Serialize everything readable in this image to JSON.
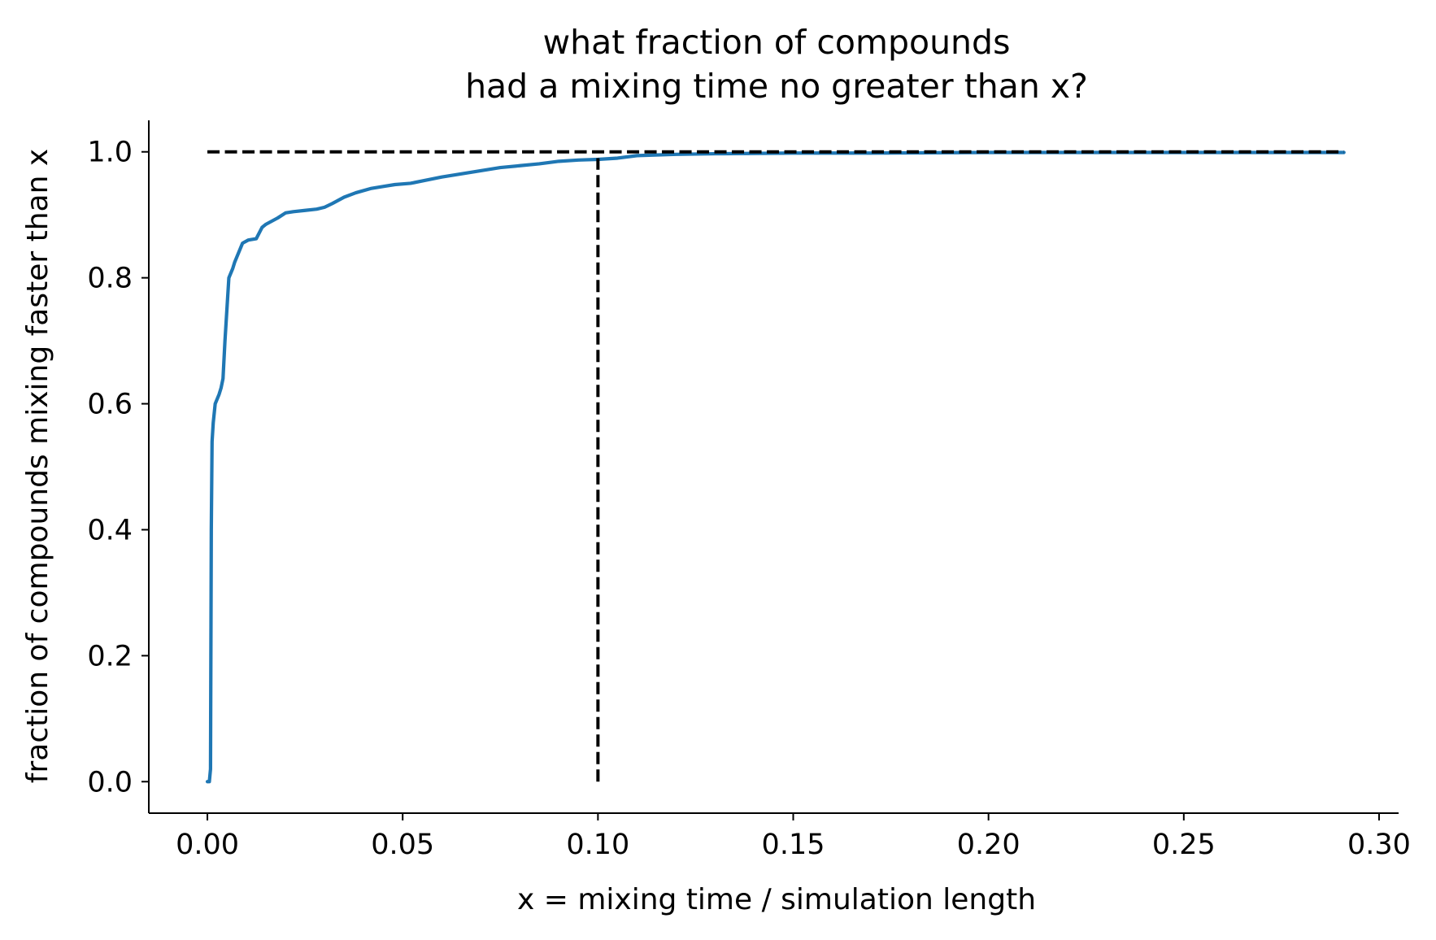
{
  "chart_data": {
    "type": "line",
    "title_lines": [
      "what fraction of compounds",
      "had a mixing time no greater than x?"
    ],
    "xlabel": "x = mixing time / simulation length",
    "ylabel": "fraction of compounds mixing faster than x",
    "xlim": [
      -0.015,
      0.305
    ],
    "ylim": [
      -0.05,
      1.05
    ],
    "x_ticks": [
      0.0,
      0.05,
      0.1,
      0.15,
      0.2,
      0.25,
      0.3
    ],
    "x_tick_labels": [
      "0.00",
      "0.05",
      "0.10",
      "0.15",
      "0.20",
      "0.25",
      "0.30"
    ],
    "y_ticks": [
      0.0,
      0.2,
      0.4,
      0.6,
      0.8,
      1.0
    ],
    "y_tick_labels": [
      "0.0",
      "0.2",
      "0.4",
      "0.6",
      "0.8",
      "1.0"
    ],
    "grid": false,
    "spines": [
      "left",
      "bottom"
    ],
    "series": [
      {
        "color": "#1f77b4",
        "style": "solid",
        "x": [
          0.0,
          0.0005,
          0.0008,
          0.001,
          0.0012,
          0.0015,
          0.002,
          0.003,
          0.0035,
          0.004,
          0.0045,
          0.0055,
          0.0065,
          0.007,
          0.008,
          0.009,
          0.0105,
          0.0125,
          0.014,
          0.015,
          0.018,
          0.02,
          0.022,
          0.025,
          0.028,
          0.03,
          0.032,
          0.035,
          0.038,
          0.042,
          0.045,
          0.048,
          0.052,
          0.056,
          0.06,
          0.065,
          0.07,
          0.075,
          0.08,
          0.085,
          0.09,
          0.095,
          0.1,
          0.105,
          0.11,
          0.12,
          0.13,
          0.15,
          0.17,
          0.2,
          0.25,
          0.291
        ],
        "y": [
          0.0,
          0.0,
          0.02,
          0.4,
          0.54,
          0.57,
          0.6,
          0.615,
          0.625,
          0.64,
          0.7,
          0.8,
          0.815,
          0.825,
          0.84,
          0.855,
          0.86,
          0.862,
          0.88,
          0.885,
          0.895,
          0.903,
          0.905,
          0.907,
          0.909,
          0.912,
          0.918,
          0.928,
          0.935,
          0.942,
          0.945,
          0.948,
          0.95,
          0.955,
          0.96,
          0.965,
          0.97,
          0.975,
          0.978,
          0.981,
          0.985,
          0.987,
          0.988,
          0.99,
          0.994,
          0.996,
          0.997,
          0.998,
          0.998,
          0.999,
          0.999,
          0.999
        ]
      },
      {
        "color": "#000000",
        "style": "dashed",
        "x": [
          0.0,
          0.291
        ],
        "y": [
          1.0,
          1.0
        ]
      },
      {
        "color": "#000000",
        "style": "dashed",
        "x": [
          0.1,
          0.1
        ],
        "y": [
          0.0,
          0.99
        ]
      }
    ]
  }
}
